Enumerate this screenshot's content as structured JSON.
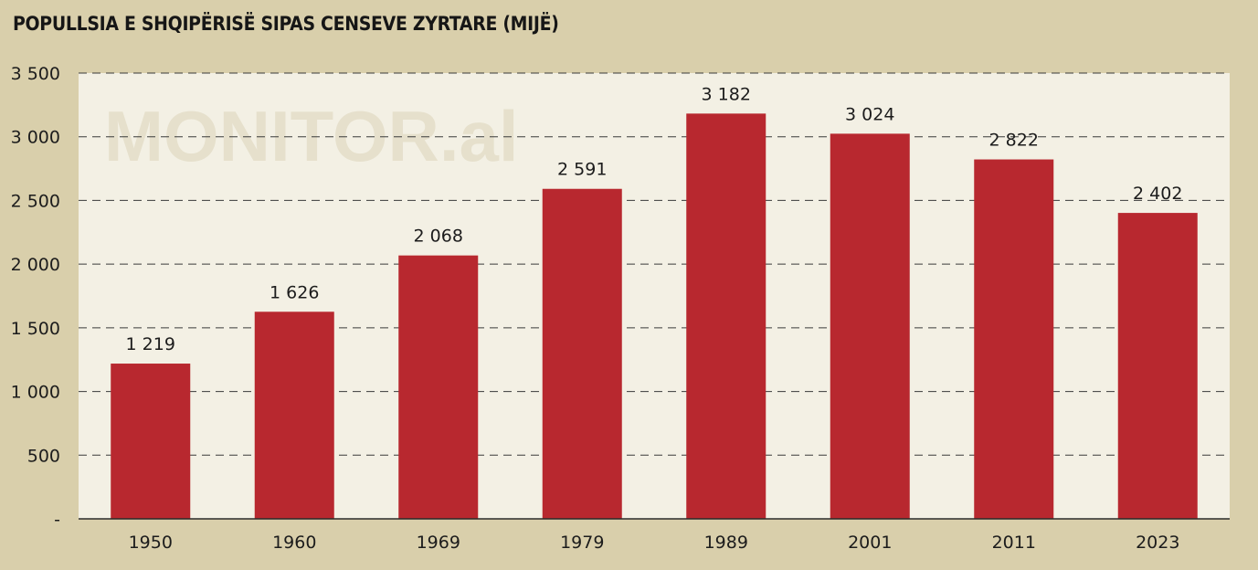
{
  "chart_data": {
    "type": "bar",
    "title": "POPULLSIA E SHQIPËRISË SIPAS CENSEVE ZYRTARE (MIJË)",
    "watermark": "MONITOR.al",
    "categories": [
      "1950",
      "1960",
      "1969",
      "1979",
      "1989",
      "2001",
      "2011",
      "2023"
    ],
    "values": [
      1219,
      1626,
      2068,
      2591,
      3182,
      3024,
      2822,
      2402
    ],
    "value_labels": [
      "1 219",
      "1 626",
      "2 068",
      "2 591",
      "3 182",
      "3 024",
      "2 822",
      "2 402"
    ],
    "yticks": [
      0,
      500,
      1000,
      1500,
      2000,
      2500,
      3000,
      3500
    ],
    "ytick_labels": [
      "-",
      "500",
      "1 000",
      "1 500",
      "2 000",
      "2 500",
      "3 000",
      "3 500"
    ],
    "ylim": [
      0,
      3500
    ],
    "grid": true,
    "bar_color": "#b8282f",
    "plot_background": "#f3f0e4",
    "page_background": "#d9cfab"
  }
}
